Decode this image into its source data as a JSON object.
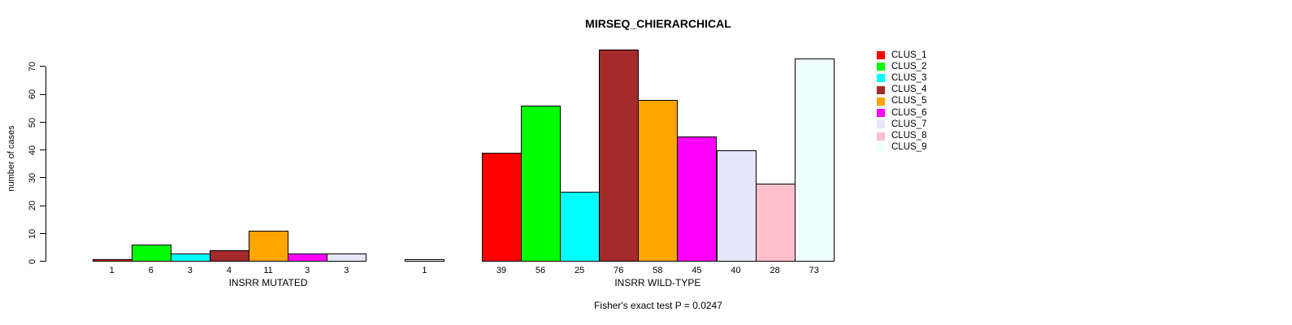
{
  "chart_data": {
    "type": "bar",
    "title": "MIRSEQ_CHIERARCHICAL",
    "ylabel": "number of cases",
    "xlabel_groups": [
      "INSRR MUTATED",
      "INSRR WILD-TYPE"
    ],
    "ylim": [
      0,
      70
    ],
    "yticks": [
      0,
      10,
      20,
      30,
      40,
      50,
      60,
      70
    ],
    "grid": false,
    "legend_position": "right",
    "categories": [
      "CLUS_1",
      "CLUS_2",
      "CLUS_3",
      "CLUS_4",
      "CLUS_5",
      "CLUS_6",
      "CLUS_7",
      "CLUS_8",
      "CLUS_9"
    ],
    "colors": [
      "#FF0000",
      "#00FF00",
      "#00FFFF",
      "#A52A2A",
      "#FFA500",
      "#FF00FF",
      "#E6E6FA",
      "#FFC0CB",
      "#F0FFFF"
    ],
    "series_note": "bars labeled with their values below each bar; zero values drawn as empty slot with no label",
    "groups": [
      {
        "label": "INSRR MUTATED",
        "values": [
          1,
          6,
          3,
          4,
          11,
          3,
          3,
          0,
          1
        ]
      },
      {
        "label": "INSRR WILD-TYPE",
        "values": [
          39,
          56,
          25,
          76,
          58,
          45,
          40,
          28,
          73
        ]
      }
    ],
    "annotation": "Fisher's exact test P = 0.0247",
    "bar_border_color": "#000000",
    "background_color": "#FFFFFF"
  }
}
